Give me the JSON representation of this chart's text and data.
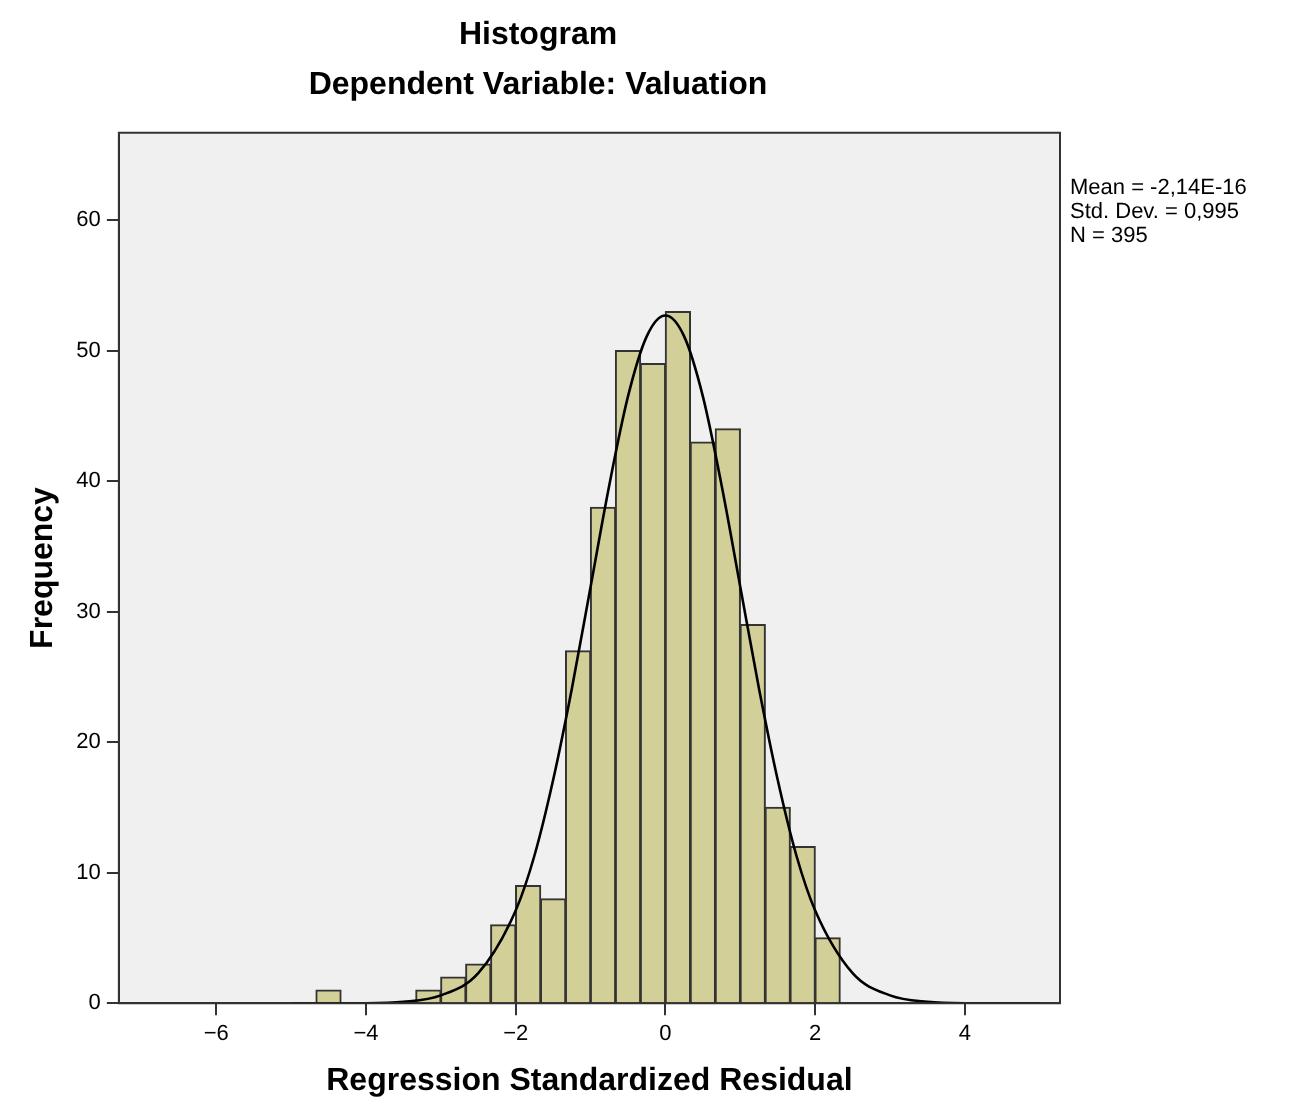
{
  "chart_data": {
    "type": "histogram",
    "title": "Histogram",
    "subtitle": "Dependent Variable: Valuation",
    "xlabel": "Regression Standardized Residual",
    "ylabel": "Frequency",
    "bins": [
      -4.667,
      -4.333,
      -4,
      -3.667,
      -3.333,
      -3,
      -2.667,
      -2.333,
      -2,
      -1.667,
      -1.333,
      -1,
      -0.667,
      -0.333,
      0,
      0.333,
      0.667,
      1,
      1.333,
      1.667,
      2,
      2.333
    ],
    "values": [
      1,
      0,
      0,
      0,
      1,
      2,
      3,
      6,
      9,
      8,
      27,
      38,
      50,
      49,
      53,
      43,
      44,
      29,
      15,
      12,
      5
    ],
    "color": "#d3cf98",
    "series": [
      {
        "type": "line",
        "color": "#000000",
        "x": [
          -5,
          -4,
          -3.5,
          -3,
          -2.5,
          -2,
          -1.75,
          -1.5,
          -1.25,
          -1,
          -0.75,
          -0.5,
          -0.25,
          0,
          0.25,
          0.5,
          0.75,
          1,
          1.25,
          1.5,
          1.75,
          2,
          2.5,
          3,
          3.5,
          4,
          5
        ],
        "values": [
          0,
          0,
          0.1,
          0.6,
          2.3,
          7.1,
          11.3,
          17.1,
          24.1,
          31.9,
          39.7,
          46.5,
          51.1,
          52.7,
          51.1,
          46.5,
          39.7,
          31.9,
          24.1,
          17.1,
          11.3,
          7.1,
          2.3,
          0.6,
          0.1,
          0,
          0
        ]
      }
    ],
    "xlim": [
      -7.3,
      5.27
    ],
    "ylim": [
      0,
      66.7
    ],
    "xticks": [
      -6,
      -4,
      -2,
      0,
      2,
      4
    ],
    "yticks": [
      0,
      10,
      20,
      30,
      40,
      50,
      60
    ],
    "grid": false,
    "legend": false,
    "marker": "none",
    "annotations": [
      "Mean = -2,14E-16",
      "Std. Dev. = 0,995",
      "N = 395"
    ]
  }
}
